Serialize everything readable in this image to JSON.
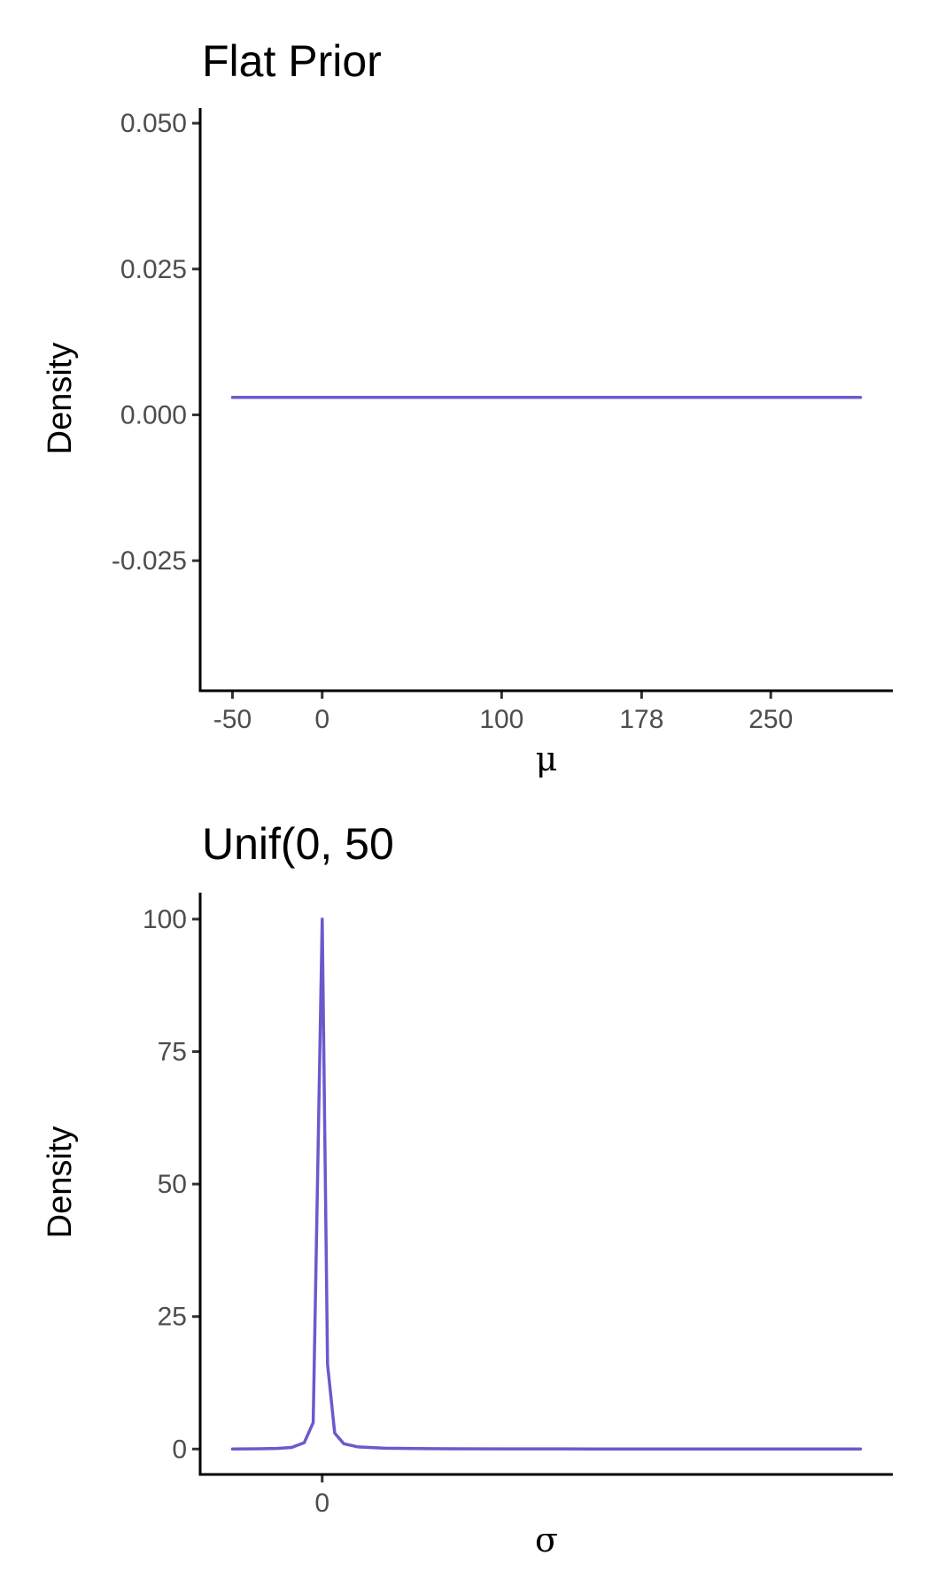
{
  "chart_data": [
    {
      "type": "line",
      "title": "Flat Prior",
      "xlabel": "μ",
      "ylabel": "Density",
      "xlim": [
        -68,
        318
      ],
      "ylim": [
        -0.0473,
        0.0526
      ],
      "x_ticks": [
        -50,
        0,
        100,
        178,
        250
      ],
      "x_tick_labels": [
        "-50",
        "0",
        "100",
        "178",
        "250"
      ],
      "y_ticks": [
        0.05,
        0.025,
        0,
        -0.025
      ],
      "y_tick_labels": [
        "0.050",
        "0.025",
        "0.000",
        "-0.025"
      ],
      "series": [
        {
          "color": "#6a5acd",
          "x": [
            -50,
            300
          ],
          "y": [
            0.003,
            0.003
          ]
        }
      ],
      "grid": false
    },
    {
      "type": "line",
      "title": "Unif(0, 50",
      "xlabel": "σ",
      "ylabel": "Density",
      "xlim": [
        -68,
        318
      ],
      "ylim": [
        -4.8,
        105
      ],
      "x_ticks": [
        0
      ],
      "x_tick_labels": [
        "0"
      ],
      "y_ticks": [
        100,
        75,
        50,
        25,
        0
      ],
      "y_tick_labels": [
        "100",
        "75",
        "50",
        "25",
        "0"
      ],
      "series": [
        {
          "color": "#6a5acd",
          "x": [
            -50,
            -35,
            -25,
            -17,
            -10,
            -5,
            0,
            3,
            7,
            12,
            20,
            35,
            60,
            100,
            150,
            200,
            250,
            300
          ],
          "y": [
            0,
            0.05,
            0.12,
            0.3,
            1.2,
            5,
            100,
            16,
            3,
            1,
            0.4,
            0.15,
            0.06,
            0.03,
            0.02,
            0.01,
            0.005,
            0
          ]
        }
      ],
      "grid": false
    }
  ]
}
